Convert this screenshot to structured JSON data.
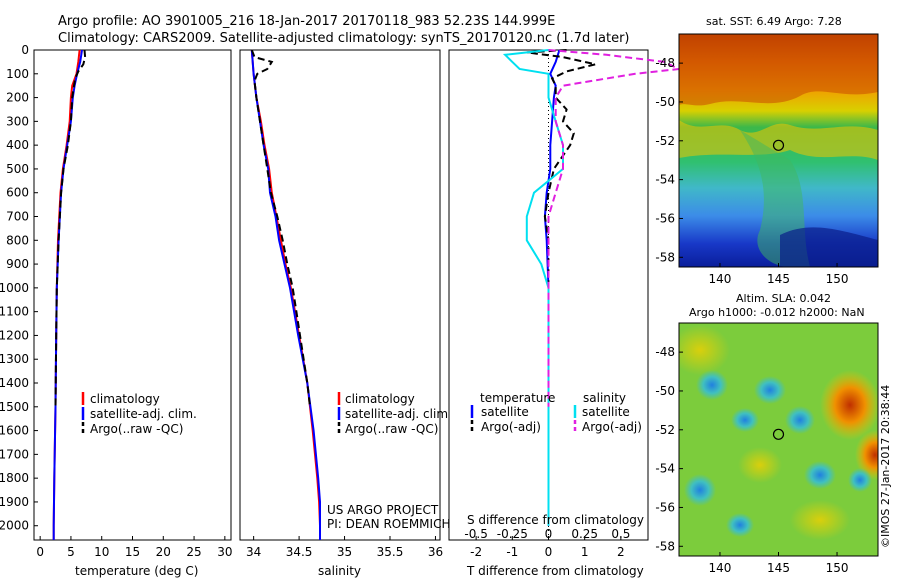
{
  "header": {
    "line1": "Argo profile: AO 3901005_216 18-Jan-2017 20170118_983 52.23S 144.999E",
    "line2": "Climatology: CARS2009. Satellite-adjusted climatology: synTS_20170120.nc (1.7d later)"
  },
  "colors": {
    "climatology": "#ff0000",
    "satellite": "#0000ff",
    "argo": "#000000",
    "salinity_sat": "#00e0f0",
    "salinity_argo": "#e020e0"
  },
  "chart_data": [
    {
      "type": "line",
      "panel": "temperature",
      "xlabel": "temperature (deg C)",
      "xlim": [
        -1,
        31
      ],
      "ylim": [
        2060,
        0
      ],
      "xticks": [
        0,
        5,
        10,
        15,
        20,
        25,
        30
      ],
      "yticks": [
        0,
        100,
        200,
        300,
        400,
        500,
        600,
        700,
        800,
        900,
        1000,
        1100,
        1200,
        1300,
        1400,
        1500,
        1600,
        1700,
        1800,
        1900,
        2000
      ],
      "legend": [
        "climatology",
        "satellite-adj. clim.",
        "Argo(..raw -QC)"
      ],
      "series": [
        {
          "name": "climatology",
          "depth": [
            0,
            50,
            100,
            150,
            200,
            300,
            400,
            500,
            600,
            800,
            1000,
            1200,
            1500,
            1800,
            2000,
            2060
          ],
          "values": [
            6.4,
            6.2,
            5.9,
            5.2,
            5.0,
            4.8,
            4.3,
            3.7,
            3.3,
            2.9,
            2.7,
            2.6,
            2.5,
            2.3,
            2.2,
            2.2
          ]
        },
        {
          "name": "satellite-adj. clim.",
          "depth": [
            0,
            50,
            100,
            150,
            200,
            300,
            400,
            500,
            600,
            800,
            1000,
            1200,
            1500,
            1800,
            2000,
            2060
          ],
          "values": [
            6.8,
            6.5,
            6.0,
            5.6,
            5.3,
            5.0,
            4.4,
            3.8,
            3.4,
            3.0,
            2.7,
            2.6,
            2.5,
            2.3,
            2.2,
            2.2
          ]
        },
        {
          "name": "Argo(..raw -QC)",
          "depth": [
            0,
            30,
            60,
            90,
            120,
            150,
            200,
            300,
            400,
            500,
            600,
            800,
            1000,
            1200,
            1500
          ],
          "values": [
            7.2,
            7.3,
            7.0,
            6.2,
            5.7,
            5.5,
            5.2,
            5.0,
            4.5,
            3.8,
            3.4,
            3.0,
            2.7,
            2.6,
            2.5
          ]
        }
      ]
    },
    {
      "type": "line",
      "panel": "salinity",
      "xlabel": "salinity",
      "xlim": [
        33.85,
        36.05
      ],
      "ylim": [
        2060,
        0
      ],
      "xticks": [
        34,
        34.5,
        35,
        35.5,
        36
      ],
      "legend": [
        "climatology",
        "satellite-adj. clim.",
        "Argo(..raw -QC)"
      ],
      "annotation": [
        "US ARGO PROJECT",
        "PI: DEAN ROEMMICH"
      ],
      "series": [
        {
          "name": "climatology",
          "depth": [
            0,
            50,
            100,
            200,
            300,
            400,
            500,
            600,
            700,
            800,
            900,
            1000,
            1200,
            1400,
            1600,
            1800,
            1900,
            2000,
            2060
          ],
          "values": [
            33.98,
            33.99,
            34.0,
            34.03,
            34.08,
            34.12,
            34.17,
            34.2,
            34.25,
            34.3,
            34.35,
            34.41,
            34.5,
            34.59,
            34.65,
            34.7,
            34.72,
            34.73,
            34.73
          ]
        },
        {
          "name": "satellite-adj. clim.",
          "depth": [
            0,
            50,
            100,
            200,
            300,
            400,
            500,
            600,
            700,
            800,
            900,
            1000,
            1200,
            1400,
            1600,
            1800,
            1900,
            2000,
            2060
          ],
          "values": [
            33.98,
            33.99,
            34.0,
            34.03,
            34.07,
            34.11,
            34.16,
            34.18,
            34.24,
            34.28,
            34.34,
            34.4,
            34.49,
            34.59,
            34.66,
            34.71,
            34.73,
            34.73,
            34.73
          ]
        },
        {
          "name": "Argo(..raw -QC)",
          "depth": [
            0,
            30,
            50,
            80,
            100,
            130,
            200,
            300,
            400,
            500,
            600,
            700,
            800,
            900,
            1000,
            1100,
            1200,
            1400,
            1500
          ],
          "values": [
            33.98,
            34.01,
            34.2,
            34.15,
            34.04,
            34.01,
            34.03,
            34.07,
            34.11,
            34.15,
            34.19,
            34.26,
            34.32,
            34.37,
            34.43,
            34.47,
            34.51,
            34.59,
            34.62
          ]
        }
      ]
    },
    {
      "type": "line",
      "panel": "difference",
      "xlabel": "T difference from climatology",
      "xlabel2": "S difference from climatology",
      "xlim": [
        -2.75,
        2.75
      ],
      "ylim": [
        2060,
        0
      ],
      "xticks": [
        -2,
        -1,
        0,
        1,
        2
      ],
      "xticks2": [
        "-0.5",
        "-0.25",
        "0",
        "0.25",
        "0.5"
      ],
      "legend_title_left": "temperature",
      "legend_title_right": "salinity",
      "legend": [
        "satellite",
        "Argo(-adj)",
        "satellite",
        "Argo(-adj)"
      ],
      "series": [
        {
          "name": "satellite",
          "depth": [
            0,
            50,
            100,
            150,
            200,
            300,
            400,
            500,
            600,
            700,
            800,
            1000,
            1200,
            1500,
            2000
          ],
          "values": [
            0.3,
            0.2,
            0.05,
            0.2,
            0.15,
            0.1,
            0.05,
            0.05,
            -0.05,
            -0.1,
            -0.05,
            0.0,
            0.0,
            0.0,
            0.0
          ]
        },
        {
          "name": "Argo(-adj)",
          "depth": [
            0,
            10,
            30,
            60,
            90,
            120,
            150,
            200,
            250,
            300,
            350,
            400,
            500,
            600,
            700,
            800,
            1000,
            1200,
            1500
          ],
          "values": [
            0.5,
            -0.6,
            0.4,
            1.3,
            0.5,
            0.1,
            0.2,
            0.2,
            0.5,
            0.4,
            0.7,
            0.6,
            0.15,
            0.0,
            -0.1,
            0.0,
            0.0,
            0.0,
            0.0
          ]
        },
        {
          "name": "satellite",
          "depth": [
            0,
            20,
            50,
            80,
            100,
            150,
            200,
            300,
            400,
            500,
            600,
            700,
            800,
            900,
            1000,
            1200,
            1500,
            2000
          ],
          "values": [
            0.0,
            -0.3,
            -0.25,
            -0.2,
            0.0,
            0.0,
            0.0,
            0.05,
            0.1,
            0.1,
            -0.1,
            -0.15,
            -0.15,
            -0.05,
            0.0,
            0.0,
            0.0,
            0.0
          ]
        },
        {
          "name": "Argo(-adj)",
          "depth": [
            0,
            20,
            50,
            80,
            100,
            130,
            150,
            200,
            300,
            400,
            500,
            600,
            700,
            800,
            900,
            1000,
            1200,
            1500
          ],
          "values": [
            0.0,
            0.4,
            0.8,
            0.9,
            0.6,
            0.3,
            0.1,
            0.05,
            0.05,
            0.1,
            0.1,
            0.05,
            0.0,
            0.0,
            0.0,
            0.0,
            0.0,
            0.0
          ]
        }
      ]
    },
    {
      "type": "heatmap",
      "panel": "sst_map",
      "title": "sat. SST: 6.49  Argo: 7.28",
      "xticks": [
        140,
        145,
        150
      ],
      "yticks": [
        -48,
        -50,
        -52,
        -54,
        -56,
        -58
      ],
      "xlim": [
        136.5,
        153.5
      ],
      "ylim": [
        -58.5,
        -46.5
      ],
      "marker": {
        "lon": 144.999,
        "lat": -52.23
      }
    },
    {
      "type": "heatmap",
      "panel": "sla_map",
      "title": "Altim. SLA: 0.042",
      "subtitle": "Argo h1000: -0.012 h2000: NaN",
      "xticks": [
        140,
        145,
        150
      ],
      "yticks": [
        -48,
        -50,
        -52,
        -54,
        -56,
        -58
      ],
      "xlim": [
        136.5,
        153.5
      ],
      "ylim": [
        -58.5,
        -46.5
      ],
      "marker": {
        "lon": 144.999,
        "lat": -52.23
      }
    }
  ],
  "footer": {
    "stamp": "©IMOS 27-Jan-2017 20:38:44"
  }
}
